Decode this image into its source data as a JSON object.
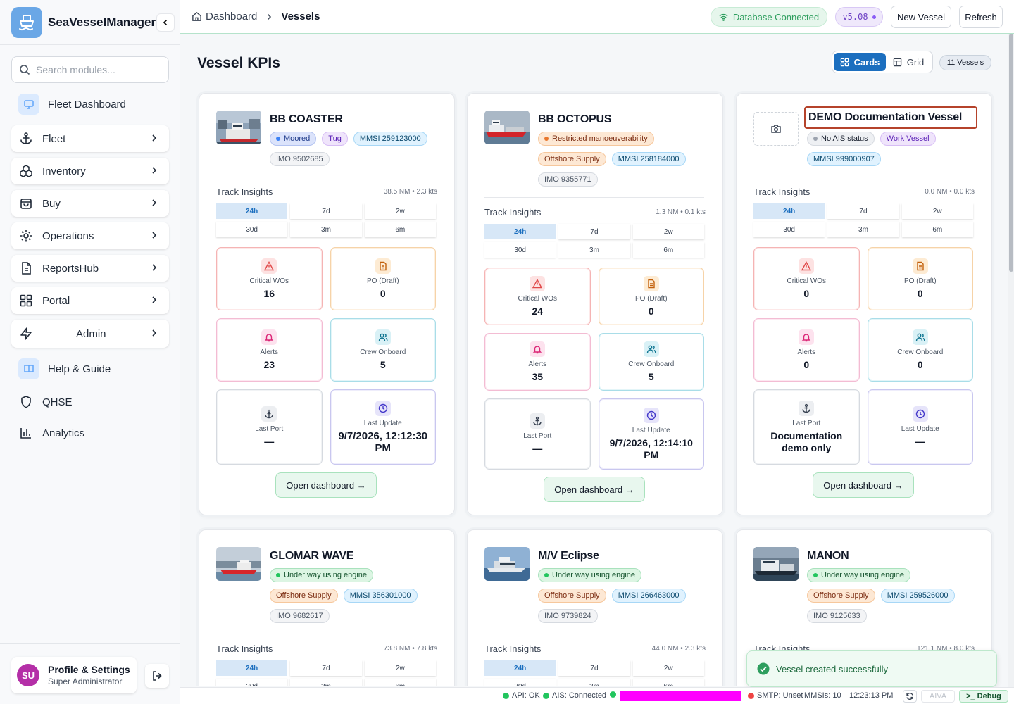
{
  "app": {
    "name": "SeaVesselManager",
    "version": "v5.08"
  },
  "sidebar": {
    "search_placeholder": "Search modules...",
    "items": [
      {
        "label": "Fleet Dashboard",
        "icon": "monitor-icon"
      },
      {
        "label": "Fleet",
        "icon": "anchor-icon"
      },
      {
        "label": "Inventory",
        "icon": "boxes-icon"
      },
      {
        "label": "Buy",
        "icon": "bag-icon"
      },
      {
        "label": "Operations",
        "icon": "gear-icon"
      },
      {
        "label": "ReportsHub",
        "icon": "document-icon"
      },
      {
        "label": "Portal",
        "icon": "grid-icon"
      },
      {
        "label": "Admin",
        "icon": "bolt-icon"
      },
      {
        "label": "Help & Guide",
        "icon": "book-icon"
      },
      {
        "label": "QHSE",
        "icon": "shield-icon"
      },
      {
        "label": "Analytics",
        "icon": "chart-icon"
      }
    ],
    "profile": {
      "initials": "SU",
      "name": "Profile & Settings",
      "role": "Super Administrator"
    }
  },
  "topbar": {
    "breadcrumb": [
      "Dashboard",
      "Vessels"
    ],
    "db_status": "Database Connected",
    "version": "v5.08",
    "new_vessel": "New Vessel",
    "refresh": "Refresh"
  },
  "page": {
    "title": "Vessel KPIs",
    "view_cards": "Cards",
    "view_grid": "Grid",
    "vessel_count": "11 Vessels",
    "track_label": "Track Insights",
    "ranges": [
      "24h",
      "7d",
      "2w",
      "30d",
      "3m",
      "6m"
    ],
    "kpi_labels": {
      "critical": "Critical WOs",
      "po": "PO (Draft)",
      "alerts": "Alerts",
      "crew": "Crew Onboard",
      "port": "Last Port",
      "update": "Last Update"
    },
    "open_label": "Open dashboard →"
  },
  "vessels": [
    {
      "name": "BB COASTER",
      "status": "Moored",
      "type": "Tug",
      "mmsi": "MMSI 259123000",
      "imo": "IMO 9502685",
      "stats": "38.5 NM • 2.3 kts",
      "critical": "16",
      "po": "0",
      "alerts": "23",
      "crew": "5",
      "port": "—",
      "update": "9/7/2026, 12:12:30 PM"
    },
    {
      "name": "BB OCTOPUS",
      "status": "Restricted manoeuverability",
      "type": "Offshore Supply",
      "mmsi": "MMSI 258184000",
      "imo": "IMO 9355771",
      "stats": "1.3 NM • 0.1 kts",
      "critical": "24",
      "po": "0",
      "alerts": "35",
      "crew": "5",
      "port": "—",
      "update": "9/7/2026, 12:14:10 PM"
    },
    {
      "name": "DEMO Documentation Vessel",
      "status": "No AIS status",
      "type": "Work Vessel",
      "mmsi": "MMSI 999000907",
      "stats": "0.0 NM • 0.0 kts",
      "critical": "0",
      "po": "0",
      "alerts": "0",
      "crew": "0",
      "port": "Documentation demo only",
      "update": "—"
    },
    {
      "name": "GLOMAR WAVE",
      "status": "Under way using engine",
      "type": "Offshore Supply",
      "mmsi": "MMSI 356301000",
      "imo": "IMO 9682617",
      "stats": "73.8 NM • 7.8 kts"
    },
    {
      "name": "M/V Eclipse",
      "status": "Under way using engine",
      "type": "Offshore Supply",
      "mmsi": "MMSI 266463000",
      "imo": "IMO 9739824",
      "stats": "44.0 NM • 2.3 kts"
    },
    {
      "name": "MANON",
      "status": "Under way using engine",
      "type": "Offshore Supply",
      "mmsi": "MMSI 259526000",
      "imo": "IMO 9125633",
      "stats": "121.1 NM • 8.0 kts"
    }
  ],
  "toast": "Vessel created successfully",
  "statusbar": {
    "api": "API: OK",
    "ais": "AIS: Connected",
    "smtp": "SMTP: Unset",
    "mmsis": "MMSIs: 10",
    "time": "12:23:13 PM",
    "aiva": "AIVA",
    "debug": ">_ Debug"
  },
  "colors": {
    "accent": "#1c6fbf",
    "success": "#2e9e5e",
    "danger": "#e04848",
    "highlight": "#ff00ff"
  }
}
